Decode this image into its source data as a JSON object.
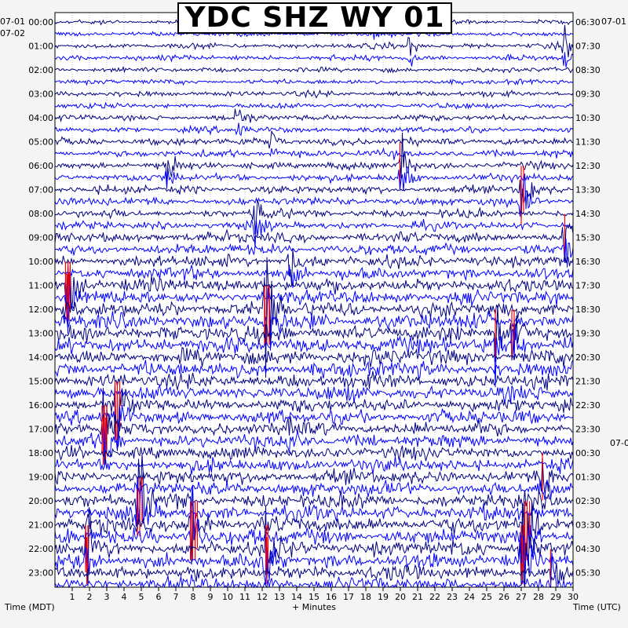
{
  "chart_data": {
    "type": "line",
    "title": "YDC SHZ WY 01",
    "xlabel": "+ Minutes",
    "ylabel_left": "Time (MDT)",
    "ylabel_right": "Time (UTC)",
    "xlim": [
      0,
      30
    ],
    "x_ticks": [
      "1",
      "2",
      "3",
      "4",
      "5",
      "6",
      "7",
      "8",
      "9",
      "10",
      "11",
      "12",
      "13",
      "14",
      "15",
      "16",
      "17",
      "18",
      "19",
      "20",
      "21",
      "22",
      "23",
      "24",
      "25",
      "26",
      "27",
      "28",
      "29",
      "30"
    ],
    "left_date_prev": "07-01",
    "left_date": "07-02",
    "right_date_prev": "07-01",
    "right_date_next": "07-0",
    "left_hours": [
      "00:00",
      "01:00",
      "02:00",
      "03:00",
      "04:00",
      "05:00",
      "06:00",
      "07:00",
      "08:00",
      "09:00",
      "10:00",
      "11:00",
      "12:00",
      "13:00",
      "14:00",
      "15:00",
      "16:00",
      "17:00",
      "18:00",
      "19:00",
      "20:00",
      "21:00",
      "22:00",
      "23:00"
    ],
    "right_hours": [
      "06:30",
      "07:30",
      "08:30",
      "09:30",
      "10:30",
      "11:30",
      "12:30",
      "13:30",
      "14:30",
      "15:30",
      "16:30",
      "17:30",
      "18:30",
      "19:30",
      "20:30",
      "21:30",
      "22:30",
      "23:30",
      "00:30",
      "01:30",
      "02:30",
      "03:30",
      "04:30",
      "05:30"
    ],
    "trace_colors": [
      "#000080",
      "#0000ff"
    ],
    "clip_color": "#ff0000",
    "traces_per_hour": 2,
    "trace_count": 48,
    "activity_by_hour": [
      0.15,
      0.2,
      0.15,
      0.2,
      0.25,
      0.35,
      0.35,
      0.4,
      0.4,
      0.6,
      0.7,
      0.8,
      1.0,
      1.0,
      1.0,
      0.9,
      0.8,
      0.8,
      0.8,
      0.85,
      0.9,
      1.0,
      0.95,
      0.9
    ],
    "events": [
      {
        "hour": 0,
        "minute": 18.5,
        "amp": 0.3
      },
      {
        "hour": 1,
        "minute": 29.5,
        "amp": 0.5
      },
      {
        "hour": 1,
        "minute": 20.5,
        "amp": 0.4
      },
      {
        "hour": 4,
        "minute": 10.5,
        "amp": 0.5
      },
      {
        "hour": 5,
        "minute": 12.5,
        "amp": 0.4
      },
      {
        "hour": 6,
        "minute": 20,
        "amp": 1.4
      },
      {
        "hour": 6,
        "minute": 6.5,
        "amp": 0.8
      },
      {
        "hour": 7,
        "minute": 27,
        "amp": 1.6
      },
      {
        "hour": 8,
        "minute": 11.5,
        "amp": 1.0
      },
      {
        "hour": 9,
        "minute": 29.5,
        "amp": 1.1
      },
      {
        "hour": 10,
        "minute": 13.5,
        "amp": 0.9
      },
      {
        "hour": 11,
        "minute": 0.7,
        "amp": 2.2
      },
      {
        "hour": 12,
        "minute": 12.2,
        "amp": 2.5
      },
      {
        "hour": 13,
        "minute": 25.5,
        "amp": 1.2
      },
      {
        "hour": 13,
        "minute": 26.5,
        "amp": 1.4
      },
      {
        "hour": 16,
        "minute": 3.5,
        "amp": 2.0
      },
      {
        "hour": 17,
        "minute": 2.8,
        "amp": 2.0
      },
      {
        "hour": 17,
        "minute": 13.5,
        "amp": 0.9
      },
      {
        "hour": 19,
        "minute": 28.2,
        "amp": 1.0
      },
      {
        "hour": 20,
        "minute": 4.8,
        "amp": 2.2
      },
      {
        "hour": 21,
        "minute": 7.9,
        "amp": 2.8
      },
      {
        "hour": 21,
        "minute": 27.2,
        "amp": 2.4
      },
      {
        "hour": 22,
        "minute": 1.8,
        "amp": 1.5
      },
      {
        "hour": 22,
        "minute": 12.2,
        "amp": 1.6
      },
      {
        "hour": 22,
        "minute": 27,
        "amp": 2.0
      },
      {
        "hour": 23,
        "minute": 28.7,
        "amp": 1.2
      }
    ]
  }
}
